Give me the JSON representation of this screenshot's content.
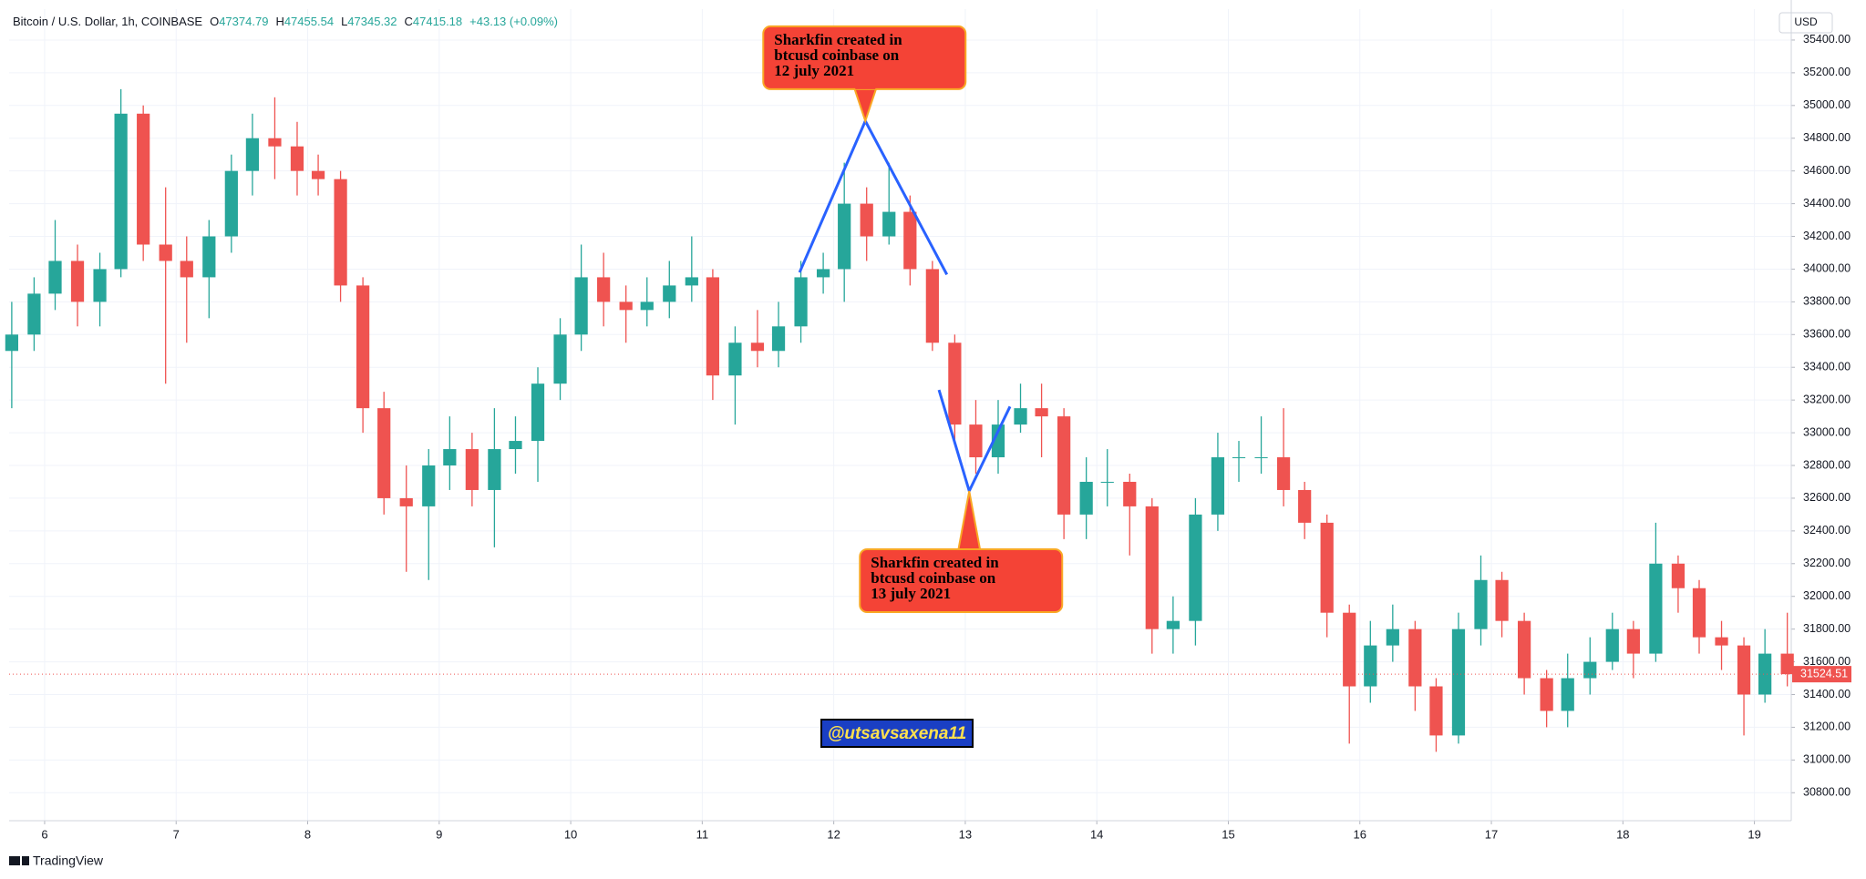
{
  "header": {
    "symbol": "Bitcoin / U.S. Dollar, 1h, COINBASE",
    "ohlc": [
      {
        "label": "O",
        "value": 47374.79
      },
      {
        "label": "H",
        "value": 47455.54
      },
      {
        "label": "L",
        "value": 47345.32
      },
      {
        "label": "C",
        "value": 47415.18
      }
    ],
    "change": "+43.13 (+0.09%)"
  },
  "chart_data": {
    "type": "candlestick",
    "x": [
      5.75,
      5.92,
      6.08,
      6.25,
      6.42,
      6.58,
      6.75,
      6.92,
      7.08,
      7.25,
      7.42,
      7.58,
      7.75,
      7.92,
      8.08,
      8.25,
      8.42,
      8.58,
      8.75,
      8.92,
      9.08,
      9.25,
      9.42,
      9.58,
      9.75,
      9.92,
      10.08,
      10.25,
      10.42,
      10.58,
      10.75,
      10.92,
      11.08,
      11.25,
      11.42,
      11.58,
      11.75,
      11.92,
      12.08,
      12.25,
      12.42,
      12.58,
      12.75,
      12.92,
      13.08,
      13.25,
      13.42,
      13.58,
      13.75,
      13.92,
      14.08,
      14.25,
      14.42,
      14.58,
      14.75,
      14.92,
      15.08,
      15.25,
      15.42,
      15.58,
      15.75,
      15.92,
      16.08,
      16.25,
      16.42,
      16.58,
      16.75,
      16.92,
      17.08,
      17.25,
      17.42,
      17.58,
      17.75,
      17.92,
      18.08,
      18.25,
      18.42,
      18.58,
      18.75,
      18.92,
      19.08,
      19.25
    ],
    "open": [
      33500,
      33600,
      33850,
      34050,
      33800,
      34000,
      34950,
      34150,
      34050,
      33950,
      34200,
      34600,
      34800,
      34750,
      34600,
      34550,
      33900,
      33150,
      32600,
      32550,
      32800,
      32900,
      32650,
      32900,
      32950,
      33300,
      33600,
      33950,
      33800,
      33750,
      33800,
      33900,
      33950,
      33350,
      33550,
      33500,
      33650,
      33950,
      34000,
      34400,
      34200,
      34350,
      34000,
      33550,
      33050,
      32850,
      33050,
      33150,
      33100,
      32500,
      32700,
      32700,
      32550,
      31800,
      31850,
      32500,
      32850,
      32850,
      32850,
      32650,
      32450,
      31900,
      31450,
      31700,
      31800,
      31450,
      31150,
      31800,
      32100,
      31850,
      31500,
      31300,
      31500,
      31600,
      31800,
      31650,
      32200,
      32050,
      31750,
      31700,
      31400,
      31650
    ],
    "high": [
      33800,
      33950,
      34300,
      34150,
      34100,
      35100,
      35000,
      34500,
      34200,
      34300,
      34700,
      34950,
      35050,
      34900,
      34700,
      34600,
      33950,
      33250,
      32800,
      32900,
      33100,
      33000,
      33150,
      33100,
      33400,
      33700,
      34150,
      34100,
      33900,
      33950,
      34050,
      34200,
      34000,
      33650,
      33750,
      33800,
      34050,
      34100,
      34650,
      34500,
      34650,
      34450,
      34050,
      33600,
      33200,
      33200,
      33300,
      33300,
      33150,
      32850,
      32900,
      32750,
      32600,
      32000,
      32600,
      33000,
      32950,
      33100,
      33150,
      32700,
      32500,
      31950,
      31850,
      31950,
      31850,
      31500,
      31900,
      32250,
      32150,
      31900,
      31550,
      31650,
      31750,
      31900,
      31850,
      32450,
      32250,
      32100,
      31850,
      31750,
      31800,
      31900
    ],
    "low": [
      33150,
      33500,
      33750,
      33650,
      33650,
      33950,
      34050,
      33300,
      33550,
      33700,
      34100,
      34450,
      34550,
      34450,
      34450,
      33800,
      33000,
      32500,
      32150,
      32100,
      32650,
      32550,
      32300,
      32750,
      32700,
      33200,
      33500,
      33650,
      33550,
      33650,
      33700,
      33800,
      33200,
      33050,
      33400,
      33400,
      33550,
      33850,
      33800,
      34050,
      34150,
      33900,
      33500,
      32950,
      32750,
      32750,
      33000,
      32850,
      32350,
      32350,
      32550,
      32250,
      31650,
      31650,
      31700,
      32400,
      32700,
      32750,
      32550,
      32350,
      31750,
      31100,
      31350,
      31600,
      31300,
      31050,
      31100,
      31700,
      31750,
      31400,
      31200,
      31200,
      31400,
      31550,
      31500,
      31600,
      31900,
      31650,
      31550,
      31150,
      31350,
      31450
    ],
    "close": [
      33600,
      33850,
      34050,
      33800,
      34000,
      34950,
      34150,
      34050,
      33950,
      34200,
      34600,
      34800,
      34750,
      34600,
      34550,
      33900,
      33150,
      32600,
      32550,
      32800,
      32900,
      32650,
      32900,
      32950,
      33300,
      33600,
      33950,
      33800,
      33750,
      33800,
      33900,
      33950,
      33350,
      33550,
      33500,
      33650,
      33950,
      34000,
      34400,
      34200,
      34350,
      34000,
      33550,
      33050,
      32850,
      33050,
      33150,
      33100,
      32500,
      32700,
      32700,
      32550,
      31800,
      31850,
      32500,
      32850,
      32850,
      32850,
      32650,
      32450,
      31900,
      31450,
      31700,
      31800,
      31450,
      31150,
      31800,
      32100,
      31850,
      31500,
      31300,
      31500,
      31600,
      31800,
      31650,
      32200,
      32050,
      31750,
      31700,
      31400,
      31650,
      31524.51
    ],
    "up_color": "#26a69a",
    "down_color": "#ef5350",
    "xlim": [
      5.73,
      19.28
    ],
    "ylim": [
      30629,
      35589
    ],
    "xticks": [
      6,
      7,
      8,
      9,
      10,
      11,
      12,
      13,
      14,
      15,
      16,
      17,
      18,
      19
    ],
    "yticks": [
      {
        "value": 30800,
        "label": "30800.00"
      },
      {
        "value": 31000,
        "label": "31000.00"
      },
      {
        "value": 31200,
        "label": "31200.00"
      },
      {
        "value": 31400,
        "label": "31400.00"
      },
      {
        "value": 31600,
        "label": "31600.00"
      },
      {
        "value": 31800,
        "label": "31800.00"
      },
      {
        "value": 32000,
        "label": "32000.00"
      },
      {
        "value": 32200,
        "label": "32200.00"
      },
      {
        "value": 32400,
        "label": "32400.00"
      },
      {
        "value": 32600,
        "label": "32600.00"
      },
      {
        "value": 32800,
        "label": "32800.00"
      },
      {
        "value": 33000,
        "label": "33000.00"
      },
      {
        "value": 33200,
        "label": "33200.00"
      },
      {
        "value": 33400,
        "label": "33400.00"
      },
      {
        "value": 33600,
        "label": "33600.00"
      },
      {
        "value": 33800,
        "label": "33800.00"
      },
      {
        "value": 34000,
        "label": "34000.00"
      },
      {
        "value": 34200,
        "label": "34200.00"
      },
      {
        "value": 34400,
        "label": "34400.00"
      },
      {
        "value": 34600,
        "label": "34600.00"
      },
      {
        "value": 34800,
        "label": "34800.00"
      },
      {
        "value": 35000,
        "label": "35000.00"
      },
      {
        "value": 35200,
        "label": "35200.00"
      },
      {
        "value": 35400,
        "label": "35400.00"
      }
    ],
    "grid": true,
    "currency": "USD",
    "drawings": [
      {
        "color": "#2962ff",
        "points": [
          [
            11.74,
            33980
          ],
          [
            12.24,
            34905
          ],
          [
            12.86,
            33967
          ]
        ],
        "callout": [
          "Sharkfin created in",
          "btcusd coinbase on",
          "12 july 2021"
        ]
      },
      {
        "color": "#2962ff",
        "points": [
          [
            12.8,
            33262
          ],
          [
            13.03,
            32644
          ],
          [
            13.34,
            33160
          ]
        ],
        "callout": [
          "Sharkfin created in",
          "btcusd coinbase on",
          "13 july 2021"
        ]
      }
    ]
  },
  "watermark": "@utsavsaxena11",
  "footer": "TradingView"
}
